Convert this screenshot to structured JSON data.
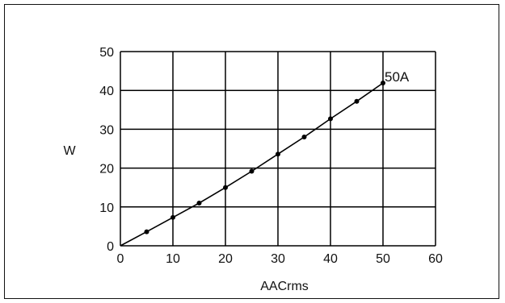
{
  "chart_data": {
    "type": "line",
    "title": "",
    "xlabel": "AACrms",
    "ylabel": "W",
    "xlim": [
      0,
      60
    ],
    "ylim": [
      0,
      50
    ],
    "xticks": [
      0,
      10,
      20,
      30,
      40,
      50,
      60
    ],
    "yticks": [
      0,
      10,
      20,
      30,
      40,
      50
    ],
    "grid": true,
    "series": [
      {
        "x": [
          0,
          5,
          10,
          15,
          20,
          25,
          30,
          35,
          40,
          45,
          50
        ],
        "y": [
          0,
          3.6,
          7.3,
          11.0,
          15.0,
          19.2,
          23.6,
          28.0,
          32.7,
          37.2,
          41.9
        ],
        "line_color": "#000000",
        "marker": "dot"
      }
    ],
    "annotation": {
      "text": "50A",
      "x": 50,
      "y": 41.9
    }
  }
}
